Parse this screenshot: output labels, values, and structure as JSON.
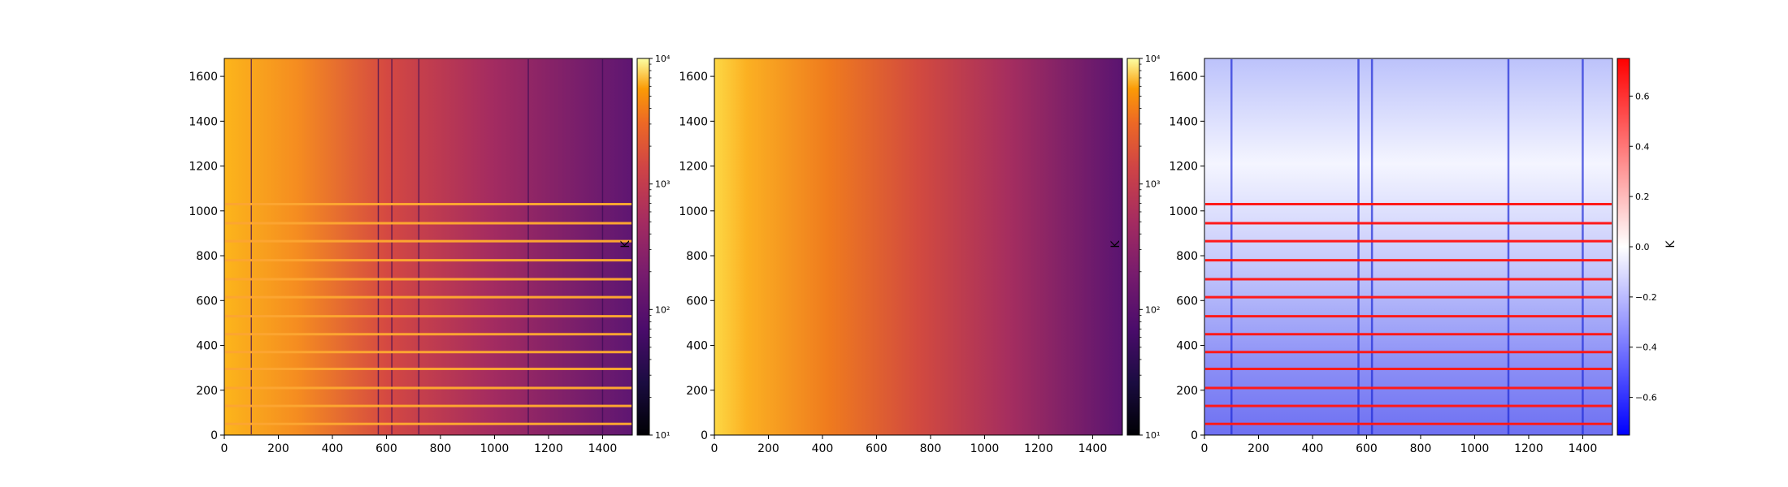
{
  "chart_data": [
    {
      "type": "heatmap",
      "title": "",
      "xlabel": "",
      "ylabel": "",
      "xlim": [
        0,
        1510
      ],
      "ylim": [
        0,
        1680
      ],
      "x_ticks": [
        "0",
        "200",
        "400",
        "600",
        "800",
        "1000",
        "1200",
        "1400"
      ],
      "y_ticks": [
        "0",
        "200",
        "400",
        "600",
        "800",
        "1000",
        "1200",
        "1400",
        "1600"
      ],
      "colorscale": "inferno",
      "color_scale_type": "log",
      "colorbar": {
        "range": [
          10,
          10000
        ],
        "ticks": [
          "10¹",
          "10²",
          "10³",
          "10⁴"
        ],
        "label": "K"
      },
      "features": {
        "horizontal_stripes_y": [
          50,
          130,
          210,
          295,
          370,
          450,
          530,
          615,
          695,
          780,
          865,
          945,
          1030
        ],
        "vertical_lines_x": [
          100,
          570,
          620,
          720,
          1125,
          1400
        ]
      }
    },
    {
      "type": "heatmap",
      "title": "",
      "xlabel": "",
      "ylabel": "",
      "xlim": [
        0,
        1510
      ],
      "ylim": [
        0,
        1680
      ],
      "x_ticks": [
        "0",
        "200",
        "400",
        "600",
        "800",
        "1000",
        "1200",
        "1400"
      ],
      "y_ticks": [
        "0",
        "200",
        "400",
        "600",
        "800",
        "1000",
        "1200",
        "1400",
        "1600"
      ],
      "colorscale": "inferno",
      "color_scale_type": "log",
      "colorbar": {
        "range": [
          10,
          10000
        ],
        "ticks": [
          "10¹",
          "10²",
          "10³",
          "10⁴"
        ],
        "label": "K"
      }
    },
    {
      "type": "heatmap",
      "title": "",
      "xlabel": "",
      "ylabel": "",
      "xlim": [
        0,
        1510
      ],
      "ylim": [
        0,
        1680
      ],
      "x_ticks": [
        "0",
        "200",
        "400",
        "600",
        "800",
        "1000",
        "1200",
        "1400"
      ],
      "y_ticks": [
        "0",
        "200",
        "400",
        "600",
        "800",
        "1000",
        "1200",
        "1400",
        "1600"
      ],
      "colorscale": "bwr",
      "color_scale_type": "linear",
      "colorbar": {
        "range": [
          -0.75,
          0.75
        ],
        "ticks": [
          "−0.6",
          "−0.4",
          "−0.2",
          "0.0",
          "0.2",
          "0.4",
          "0.6"
        ],
        "label": "K"
      },
      "features": {
        "horizontal_stripes_y": [
          50,
          130,
          210,
          295,
          370,
          450,
          530,
          615,
          695,
          780,
          865,
          945,
          1030
        ],
        "vertical_lines_x": [
          100,
          570,
          620,
          1125,
          1400
        ]
      }
    }
  ]
}
